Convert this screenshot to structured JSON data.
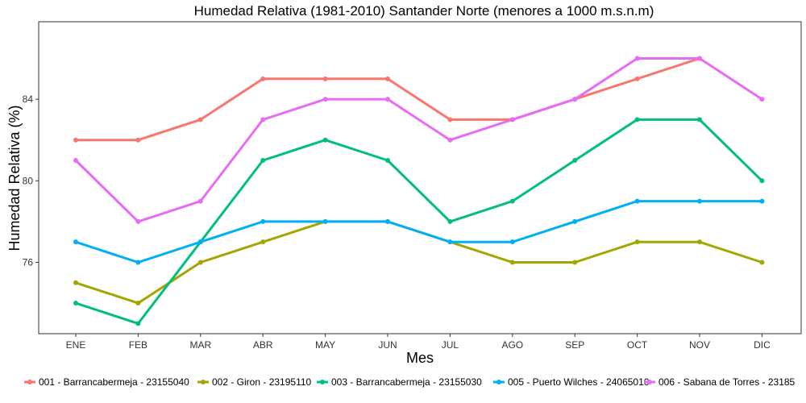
{
  "chart_data": {
    "type": "line",
    "title": "Humedad Relativa (1981-2010) Santander Norte (menores a 1000 m.s.n.m)",
    "xlabel": "Mes",
    "ylabel": "Humedad Relativa (%)",
    "categories": [
      "ENE",
      "FEB",
      "MAR",
      "ABR",
      "MAY",
      "JUN",
      "JUL",
      "AGO",
      "SEP",
      "OCT",
      "NOV",
      "DIC"
    ],
    "yticks": [
      76,
      80,
      84
    ],
    "ylim": [
      72.5,
      87.8
    ],
    "grid": false,
    "legend_position": "bottom",
    "series": [
      {
        "name": "001 - Barrancabermeja - 23155040",
        "color": "#F8766D",
        "values": [
          82,
          82,
          83,
          85,
          85,
          85,
          83,
          83,
          84,
          85,
          86,
          null
        ]
      },
      {
        "name": "002 - Giron - 23195110",
        "color": "#A3A500",
        "values": [
          75,
          74,
          76,
          77,
          78,
          78,
          77,
          76,
          76,
          77,
          77,
          76
        ]
      },
      {
        "name": "003 - Barrancabermeja - 23155030",
        "color": "#00BF7D",
        "values": [
          74,
          73,
          77,
          81,
          82,
          81,
          78,
          79,
          81,
          83,
          83,
          80
        ]
      },
      {
        "name": "005 - Puerto Wilches - 24065010",
        "color": "#00B0F6",
        "values": [
          77,
          76,
          77,
          78,
          78,
          78,
          77,
          77,
          78,
          79,
          79,
          79
        ]
      },
      {
        "name": "006 - Sabana de Torres - 23185",
        "color": "#E76BF3",
        "values": [
          81,
          78,
          79,
          83,
          84,
          84,
          82,
          83,
          84,
          86,
          86,
          84
        ]
      }
    ]
  }
}
